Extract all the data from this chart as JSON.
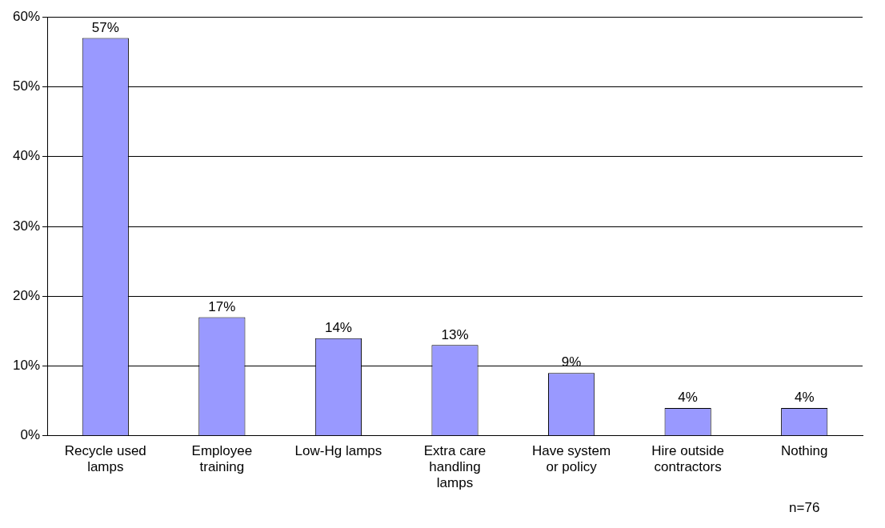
{
  "chart_data": {
    "type": "bar",
    "categories": [
      "Recycle used lamps",
      "Employee training",
      "Low-Hg lamps",
      "Extra care handling lamps",
      "Have system or policy",
      "Hire outside contractors",
      "Nothing"
    ],
    "values": [
      57,
      17,
      14,
      13,
      9,
      4,
      4
    ],
    "value_labels": [
      "57%",
      "17%",
      "14%",
      "13%",
      "9%",
      "4%",
      "4%"
    ],
    "color": "#9999ff",
    "ylim": [
      0,
      60
    ],
    "yticks": [
      {
        "value": 0,
        "label": "0%"
      },
      {
        "value": 10,
        "label": "10%"
      },
      {
        "value": 20,
        "label": "20%"
      },
      {
        "value": 30,
        "label": "30%"
      },
      {
        "value": 40,
        "label": "40%"
      },
      {
        "value": 50,
        "label": "50%"
      },
      {
        "value": 60,
        "label": "60%"
      }
    ],
    "grid": "y",
    "legend": false,
    "annotations": [
      "n=76"
    ]
  }
}
